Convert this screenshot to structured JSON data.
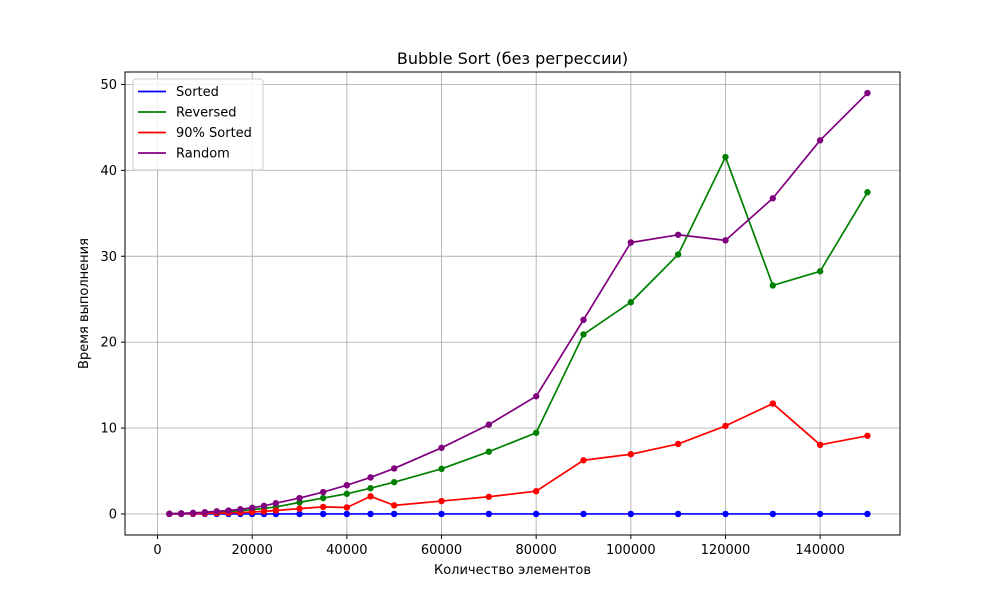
{
  "chart_data": {
    "type": "line",
    "title": "Bubble Sort (без регрессии)",
    "xlabel": "Количество элементов",
    "ylabel": "Время выполнения",
    "xlim": [
      -6875,
      156875
    ],
    "ylim": [
      -2.45,
      51.45
    ],
    "xticks": [
      0,
      20000,
      40000,
      60000,
      80000,
      100000,
      120000,
      140000
    ],
    "yticks": [
      0,
      10,
      20,
      30,
      40,
      50
    ],
    "grid": true,
    "legend_position": "top-left",
    "x": [
      2500,
      5000,
      7500,
      10000,
      12500,
      15000,
      17500,
      20000,
      22500,
      25000,
      30000,
      35000,
      40000,
      45000,
      50000,
      60000,
      70000,
      80000,
      90000,
      100000,
      110000,
      120000,
      130000,
      140000,
      150000
    ],
    "series": [
      {
        "name": "Sorted",
        "color": "#0000ff",
        "values": [
          0.0,
          0.0,
          0.0,
          0.0,
          0.0,
          0.0,
          0.0,
          0.0,
          0.0,
          0.0,
          0.0,
          0.0,
          0.0,
          0.0,
          0.0,
          0.0,
          0.0,
          0.0,
          0.0,
          0.0,
          0.0,
          0.0,
          0.0,
          0.0,
          0.0
        ]
      },
      {
        "name": "Reversed",
        "color": "#008000",
        "values": [
          0.02,
          0.06,
          0.1,
          0.15,
          0.2,
          0.28,
          0.37,
          0.5,
          0.65,
          0.82,
          1.35,
          1.85,
          2.35,
          3.0,
          3.7,
          5.25,
          7.25,
          9.45,
          20.9,
          24.65,
          30.2,
          41.55,
          26.6,
          28.25,
          37.45
        ]
      },
      {
        "name": "90% Sorted",
        "color": "#ff0000",
        "values": [
          0.01,
          0.02,
          0.04,
          0.06,
          0.09,
          0.12,
          0.16,
          0.22,
          0.3,
          0.4,
          0.62,
          0.82,
          0.75,
          2.05,
          1.0,
          1.5,
          2.0,
          2.65,
          6.25,
          6.95,
          8.15,
          10.25,
          12.85,
          8.05,
          9.1
        ]
      },
      {
        "name": "Random",
        "color": "#800080",
        "values": [
          0.02,
          0.07,
          0.13,
          0.2,
          0.3,
          0.4,
          0.55,
          0.72,
          0.95,
          1.25,
          1.85,
          2.55,
          3.35,
          4.25,
          5.3,
          7.7,
          10.4,
          13.7,
          22.6,
          31.6,
          32.5,
          31.85,
          36.75,
          43.5,
          49.0
        ]
      }
    ]
  }
}
